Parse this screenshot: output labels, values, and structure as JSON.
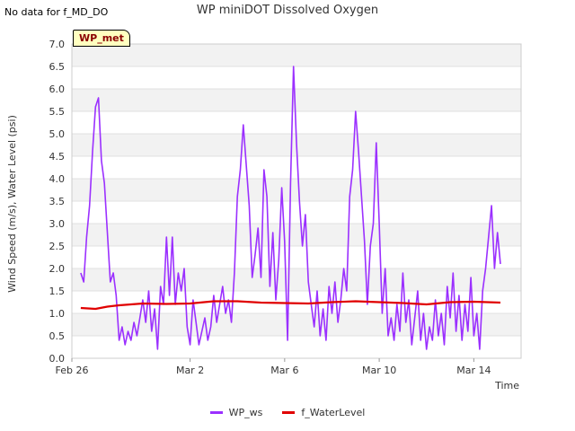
{
  "nodata_text": "No data for f_MD_DO",
  "badge": "WP_met",
  "chart_data": {
    "type": "line",
    "title": "WP miniDOT Dissolved Oxygen",
    "xlabel": "Time",
    "ylabel": "Wind Speed (m/s), Water Level (psi)",
    "ylim": [
      0,
      7
    ],
    "yticks": [
      "0.0",
      "0.5",
      "1.0",
      "1.5",
      "2.0",
      "2.5",
      "3.0",
      "3.5",
      "4.0",
      "4.5",
      "5.0",
      "5.5",
      "6.0",
      "6.5",
      "7.0"
    ],
    "xlim": [
      "2024-02-26",
      "2024-03-16"
    ],
    "xticks": [
      {
        "label": "Feb 26",
        "x": "2024-02-26"
      },
      {
        "label": "Mar 2",
        "x": "2024-03-02"
      },
      {
        "label": "Mar 6",
        "x": "2024-03-06"
      },
      {
        "label": "Mar 10",
        "x": "2024-03-10"
      },
      {
        "label": "Mar 14",
        "x": "2024-03-14"
      }
    ],
    "legend_position": "bottom",
    "series": [
      {
        "name": "WP_ws",
        "color": "#9b30ff",
        "points": [
          [
            "2024-02-26T09:00",
            1.9
          ],
          [
            "2024-02-26T12:00",
            1.7
          ],
          [
            "2024-02-26T15:00",
            2.7
          ],
          [
            "2024-02-26T18:00",
            3.4
          ],
          [
            "2024-02-26T21:00",
            4.6
          ],
          [
            "2024-02-27T00:00",
            5.6
          ],
          [
            "2024-02-27T03:00",
            5.8
          ],
          [
            "2024-02-27T06:00",
            4.4
          ],
          [
            "2024-02-27T09:00",
            3.9
          ],
          [
            "2024-02-27T12:00",
            2.8
          ],
          [
            "2024-02-27T15:00",
            1.7
          ],
          [
            "2024-02-27T18:00",
            1.9
          ],
          [
            "2024-02-27T21:00",
            1.4
          ],
          [
            "2024-02-28T00:00",
            0.4
          ],
          [
            "2024-02-28T03:00",
            0.7
          ],
          [
            "2024-02-28T06:00",
            0.3
          ],
          [
            "2024-02-28T09:00",
            0.6
          ],
          [
            "2024-02-28T12:00",
            0.4
          ],
          [
            "2024-02-28T15:00",
            0.8
          ],
          [
            "2024-02-28T18:00",
            0.5
          ],
          [
            "2024-02-28T21:00",
            0.9
          ],
          [
            "2024-02-29T00:00",
            1.3
          ],
          [
            "2024-02-29T03:00",
            0.8
          ],
          [
            "2024-02-29T06:00",
            1.5
          ],
          [
            "2024-02-29T09:00",
            0.6
          ],
          [
            "2024-02-29T12:00",
            1.1
          ],
          [
            "2024-02-29T15:00",
            0.2
          ],
          [
            "2024-02-29T18:00",
            1.6
          ],
          [
            "2024-02-29T21:00",
            1.2
          ],
          [
            "2024-03-01T00:00",
            2.7
          ],
          [
            "2024-03-01T03:00",
            1.4
          ],
          [
            "2024-03-01T06:00",
            2.7
          ],
          [
            "2024-03-01T09:00",
            1.2
          ],
          [
            "2024-03-01T12:00",
            1.9
          ],
          [
            "2024-03-01T15:00",
            1.5
          ],
          [
            "2024-03-01T18:00",
            2.0
          ],
          [
            "2024-03-01T21:00",
            0.7
          ],
          [
            "2024-03-02T00:00",
            0.3
          ],
          [
            "2024-03-02T03:00",
            1.3
          ],
          [
            "2024-03-02T06:00",
            0.8
          ],
          [
            "2024-03-02T09:00",
            0.3
          ],
          [
            "2024-03-02T12:00",
            0.6
          ],
          [
            "2024-03-02T15:00",
            0.9
          ],
          [
            "2024-03-02T18:00",
            0.4
          ],
          [
            "2024-03-02T21:00",
            0.7
          ],
          [
            "2024-03-03T00:00",
            1.4
          ],
          [
            "2024-03-03T03:00",
            0.8
          ],
          [
            "2024-03-03T06:00",
            1.2
          ],
          [
            "2024-03-03T09:00",
            1.6
          ],
          [
            "2024-03-03T12:00",
            1.0
          ],
          [
            "2024-03-03T15:00",
            1.3
          ],
          [
            "2024-03-03T18:00",
            0.8
          ],
          [
            "2024-03-03T21:00",
            1.9
          ],
          [
            "2024-03-04T00:00",
            3.6
          ],
          [
            "2024-03-04T03:00",
            4.2
          ],
          [
            "2024-03-04T06:00",
            5.2
          ],
          [
            "2024-03-04T09:00",
            4.3
          ],
          [
            "2024-03-04T12:00",
            3.4
          ],
          [
            "2024-03-04T15:00",
            1.8
          ],
          [
            "2024-03-04T18:00",
            2.3
          ],
          [
            "2024-03-04T21:00",
            2.9
          ],
          [
            "2024-03-05T00:00",
            1.8
          ],
          [
            "2024-03-05T03:00",
            4.2
          ],
          [
            "2024-03-05T06:00",
            3.6
          ],
          [
            "2024-03-05T09:00",
            1.6
          ],
          [
            "2024-03-05T12:00",
            2.8
          ],
          [
            "2024-03-05T15:00",
            1.3
          ],
          [
            "2024-03-05T18:00",
            2.2
          ],
          [
            "2024-03-05T21:00",
            3.8
          ],
          [
            "2024-03-06T00:00",
            2.6
          ],
          [
            "2024-03-06T03:00",
            0.4
          ],
          [
            "2024-03-06T06:00",
            3.9
          ],
          [
            "2024-03-06T09:00",
            6.5
          ],
          [
            "2024-03-06T12:00",
            4.8
          ],
          [
            "2024-03-06T15:00",
            3.5
          ],
          [
            "2024-03-06T18:00",
            2.5
          ],
          [
            "2024-03-06T21:00",
            3.2
          ],
          [
            "2024-03-07T00:00",
            1.7
          ],
          [
            "2024-03-07T03:00",
            1.2
          ],
          [
            "2024-03-07T06:00",
            0.7
          ],
          [
            "2024-03-07T09:00",
            1.5
          ],
          [
            "2024-03-07T12:00",
            0.5
          ],
          [
            "2024-03-07T15:00",
            1.1
          ],
          [
            "2024-03-07T18:00",
            0.4
          ],
          [
            "2024-03-07T21:00",
            1.6
          ],
          [
            "2024-03-08T00:00",
            1.0
          ],
          [
            "2024-03-08T03:00",
            1.7
          ],
          [
            "2024-03-08T06:00",
            0.8
          ],
          [
            "2024-03-08T09:00",
            1.3
          ],
          [
            "2024-03-08T12:00",
            2.0
          ],
          [
            "2024-03-08T15:00",
            1.5
          ],
          [
            "2024-03-08T18:00",
            3.6
          ],
          [
            "2024-03-08T21:00",
            4.2
          ],
          [
            "2024-03-09T00:00",
            5.5
          ],
          [
            "2024-03-09T03:00",
            4.6
          ],
          [
            "2024-03-09T06:00",
            3.6
          ],
          [
            "2024-03-09T09:00",
            2.6
          ],
          [
            "2024-03-09T12:00",
            1.2
          ],
          [
            "2024-03-09T15:00",
            2.5
          ],
          [
            "2024-03-09T18:00",
            3.0
          ],
          [
            "2024-03-09T21:00",
            4.8
          ],
          [
            "2024-03-10T00:00",
            3.0
          ],
          [
            "2024-03-10T03:00",
            1.0
          ],
          [
            "2024-03-10T06:00",
            2.0
          ],
          [
            "2024-03-10T09:00",
            0.5
          ],
          [
            "2024-03-10T12:00",
            0.9
          ],
          [
            "2024-03-10T15:00",
            0.4
          ],
          [
            "2024-03-10T18:00",
            1.2
          ],
          [
            "2024-03-10T21:00",
            0.6
          ],
          [
            "2024-03-11T00:00",
            1.9
          ],
          [
            "2024-03-11T03:00",
            0.8
          ],
          [
            "2024-03-11T06:00",
            1.3
          ],
          [
            "2024-03-11T09:00",
            0.3
          ],
          [
            "2024-03-11T12:00",
            0.9
          ],
          [
            "2024-03-11T15:00",
            1.5
          ],
          [
            "2024-03-11T18:00",
            0.4
          ],
          [
            "2024-03-11T21:00",
            1.0
          ],
          [
            "2024-03-12T00:00",
            0.2
          ],
          [
            "2024-03-12T03:00",
            0.7
          ],
          [
            "2024-03-12T06:00",
            0.4
          ],
          [
            "2024-03-12T09:00",
            1.3
          ],
          [
            "2024-03-12T12:00",
            0.5
          ],
          [
            "2024-03-12T15:00",
            1.0
          ],
          [
            "2024-03-12T18:00",
            0.3
          ],
          [
            "2024-03-12T21:00",
            1.6
          ],
          [
            "2024-03-13T00:00",
            0.9
          ],
          [
            "2024-03-13T03:00",
            1.9
          ],
          [
            "2024-03-13T06:00",
            0.6
          ],
          [
            "2024-03-13T09:00",
            1.4
          ],
          [
            "2024-03-13T12:00",
            0.4
          ],
          [
            "2024-03-13T15:00",
            1.2
          ],
          [
            "2024-03-13T18:00",
            0.6
          ],
          [
            "2024-03-13T21:00",
            1.8
          ],
          [
            "2024-03-14T00:00",
            0.5
          ],
          [
            "2024-03-14T03:00",
            1.0
          ],
          [
            "2024-03-14T06:00",
            0.2
          ],
          [
            "2024-03-14T09:00",
            1.5
          ],
          [
            "2024-03-14T12:00",
            2.0
          ],
          [
            "2024-03-14T15:00",
            2.7
          ],
          [
            "2024-03-14T18:00",
            3.4
          ],
          [
            "2024-03-14T21:00",
            2.0
          ],
          [
            "2024-03-15T00:00",
            2.8
          ],
          [
            "2024-03-15T03:00",
            2.1
          ]
        ]
      },
      {
        "name": "f_WaterLevel",
        "color": "#e00000",
        "points": [
          [
            "2024-02-26T09:00",
            1.12
          ],
          [
            "2024-02-27T00:00",
            1.1
          ],
          [
            "2024-02-27T12:00",
            1.15
          ],
          [
            "2024-02-28T00:00",
            1.18
          ],
          [
            "2024-02-28T12:00",
            1.2
          ],
          [
            "2024-02-29T00:00",
            1.22
          ],
          [
            "2024-03-01T00:00",
            1.21
          ],
          [
            "2024-03-02T00:00",
            1.22
          ],
          [
            "2024-03-03T00:00",
            1.27
          ],
          [
            "2024-03-04T00:00",
            1.27
          ],
          [
            "2024-03-05T00:00",
            1.24
          ],
          [
            "2024-03-06T00:00",
            1.23
          ],
          [
            "2024-03-07T00:00",
            1.22
          ],
          [
            "2024-03-08T00:00",
            1.25
          ],
          [
            "2024-03-09T00:00",
            1.27
          ],
          [
            "2024-03-10T00:00",
            1.25
          ],
          [
            "2024-03-11T00:00",
            1.23
          ],
          [
            "2024-03-12T00:00",
            1.2
          ],
          [
            "2024-03-13T00:00",
            1.25
          ],
          [
            "2024-03-14T00:00",
            1.26
          ],
          [
            "2024-03-15T03:00",
            1.24
          ]
        ]
      }
    ]
  }
}
